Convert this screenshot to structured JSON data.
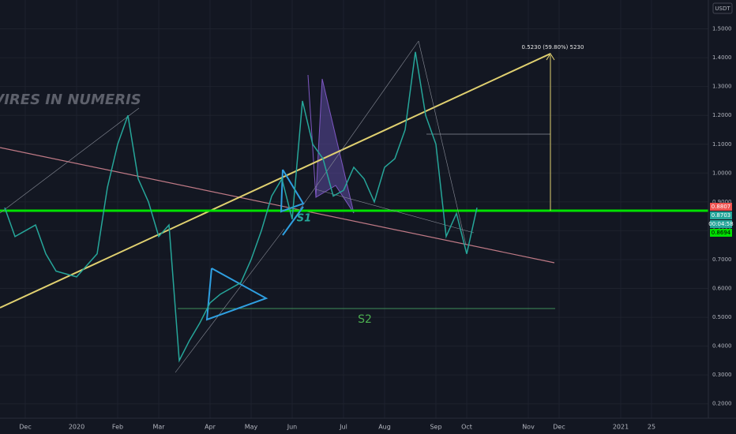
{
  "chart_data": {
    "type": "line",
    "watermark": "VIRES IN NUMERIS",
    "currency": "USDT",
    "annotations": [
      "0.5230 (59.80%) 5230",
      "S1",
      "S2"
    ],
    "price_labels": [
      "0.8807",
      "0.8703",
      "00:04:58",
      "0.8694"
    ],
    "categories": [
      null,
      null,
      "Dec",
      null,
      null,
      null,
      null,
      "2020",
      null,
      null,
      null,
      "Feb",
      null,
      null,
      null,
      "Mar",
      null,
      null,
      null,
      null,
      "Apr",
      null,
      null,
      null,
      "May",
      null,
      null,
      null,
      "Jun",
      null,
      null,
      null,
      null,
      "Jul",
      null,
      null,
      null,
      "Aug",
      null,
      null,
      null,
      null,
      "Sep",
      null,
      null,
      "Oct",
      null,
      null,
      null,
      null,
      null,
      "Nov",
      null,
      null,
      "Dec",
      null,
      null,
      null,
      null,
      null,
      "2021",
      null,
      null,
      "25",
      null,
      null,
      null,
      null,
      null
    ],
    "series": [
      {
        "color": "#26a69a",
        "values": [
          0.88,
          0.78,
          0.8,
          0.82,
          0.72,
          0.66,
          0.65,
          0.64,
          0.68,
          0.72,
          0.95,
          1.1,
          1.2,
          0.98,
          0.9,
          0.78,
          0.82,
          0.35,
          0.42,
          0.48,
          0.55,
          0.58,
          0.6,
          0.62,
          0.7,
          0.8,
          0.92,
          0.98,
          0.84,
          1.25,
          1.1,
          1.05,
          0.92,
          0.94,
          1.02,
          0.98,
          0.9,
          1.02,
          1.05,
          1.15,
          1.42,
          1.2,
          1.1,
          0.78,
          0.86,
          0.72,
          0.88,
          null,
          null,
          null,
          null,
          null,
          null,
          null,
          null,
          null,
          null,
          null,
          null,
          null,
          null,
          null,
          null,
          null,
          null,
          null,
          null,
          null,
          null
        ]
      }
    ],
    "ylim": [
      0.15,
      1.6
    ],
    "yticks": [
      {
        "value": 0.2,
        "label": "0.2000"
      },
      {
        "value": 0.3,
        "label": "0.3000"
      },
      {
        "value": 0.4,
        "label": "0.4000"
      },
      {
        "value": 0.5,
        "label": "0.5000"
      },
      {
        "value": 0.6,
        "label": "0.6000"
      },
      {
        "value": 0.7,
        "label": "0.7000"
      },
      {
        "value": 0.8,
        "label": "0.8000"
      },
      {
        "value": 0.9,
        "label": "0.9000"
      },
      {
        "value": 1.0,
        "label": "1.0000"
      },
      {
        "value": 1.1,
        "label": "1.1000"
      },
      {
        "value": 1.2,
        "label": "1.2000"
      },
      {
        "value": 1.3,
        "label": "1.3000"
      },
      {
        "value": 1.4,
        "label": "1.4000"
      },
      {
        "value": 1.5,
        "label": "1.5000"
      }
    ],
    "grid": true
  }
}
